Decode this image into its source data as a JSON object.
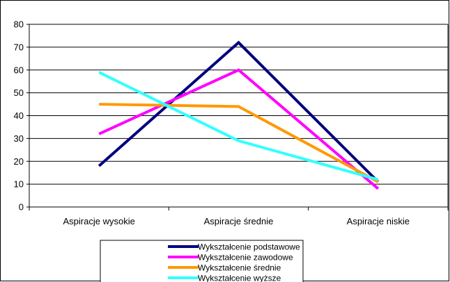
{
  "chart_data": {
    "type": "line",
    "title": "",
    "xlabel": "",
    "ylabel": "",
    "categories": [
      "Aspiracje wysokie",
      "Aspiracje średnie",
      "Aspiracje niskie"
    ],
    "ylim": [
      0,
      80
    ],
    "yticks": [
      0,
      10,
      20,
      30,
      40,
      50,
      60,
      70,
      80
    ],
    "grid": true,
    "legend_position": "bottom",
    "series": [
      {
        "name": "Wykształcenie podstawowe",
        "color": "#000080",
        "values": [
          18,
          72,
          11
        ]
      },
      {
        "name": "Wykształcenie zawodowe",
        "color": "#FF00FF",
        "values": [
          32,
          60,
          8
        ]
      },
      {
        "name": "Wykształcenie średnie",
        "color": "#FF9900",
        "values": [
          45,
          44,
          11
        ]
      },
      {
        "name": "Wykształcenie wyższe",
        "color": "#33FFFF",
        "values": [
          59,
          29,
          12
        ]
      }
    ]
  }
}
